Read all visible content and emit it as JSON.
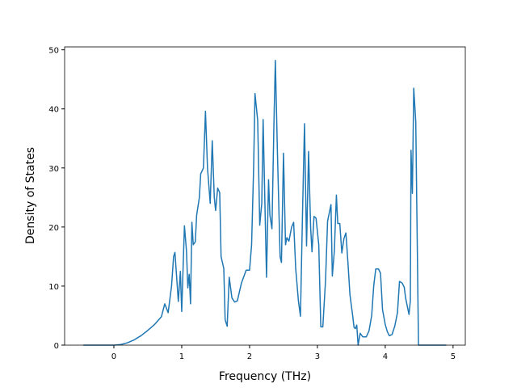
{
  "chart_data": {
    "type": "line",
    "xlabel": "Frequency (THz)",
    "ylabel": "Density of States",
    "x": [
      -0.45,
      0,
      0.1,
      0.2,
      0.3,
      0.4,
      0.5,
      0.6,
      0.7,
      0.75,
      0.8,
      0.85,
      0.88,
      0.9,
      0.95,
      0.98,
      1.0,
      1.04,
      1.07,
      1.09,
      1.11,
      1.13,
      1.15,
      1.17,
      1.2,
      1.22,
      1.26,
      1.28,
      1.32,
      1.35,
      1.38,
      1.42,
      1.45,
      1.48,
      1.5,
      1.53,
      1.56,
      1.58,
      1.62,
      1.64,
      1.67,
      1.7,
      1.74,
      1.78,
      1.82,
      1.88,
      1.95,
      2.0,
      2.03,
      2.06,
      2.08,
      2.12,
      2.15,
      2.18,
      2.2,
      2.23,
      2.25,
      2.28,
      2.3,
      2.33,
      2.36,
      2.38,
      2.41,
      2.45,
      2.47,
      2.5,
      2.53,
      2.55,
      2.58,
      2.62,
      2.65,
      2.68,
      2.72,
      2.75,
      2.78,
      2.81,
      2.84,
      2.87,
      2.9,
      2.92,
      2.95,
      2.98,
      3.02,
      3.05,
      3.08,
      3.12,
      3.15,
      3.2,
      3.22,
      3.25,
      3.28,
      3.3,
      3.33,
      3.36,
      3.39,
      3.42,
      3.45,
      3.48,
      3.52,
      3.54,
      3.56,
      3.58,
      3.6,
      3.63,
      3.67,
      3.72,
      3.76,
      3.8,
      3.83,
      3.86,
      3.9,
      3.93,
      3.96,
      4.0,
      4.03,
      4.06,
      4.1,
      4.14,
      4.18,
      4.21,
      4.25,
      4.28,
      4.3,
      4.35,
      4.37,
      4.38,
      4.4,
      4.42,
      4.45,
      4.49,
      4.9
    ],
    "series": [
      {
        "name": "DOS",
        "color": "#1f77b4",
        "values": [
          0,
          0,
          0.1,
          0.4,
          0.9,
          1.6,
          2.5,
          3.5,
          4.8,
          7,
          5.5,
          10,
          15,
          15.7,
          7.4,
          12.5,
          5.7,
          20.2,
          16,
          9.7,
          12,
          7,
          20.8,
          17,
          17.5,
          22,
          25,
          29,
          30,
          39.6,
          30,
          24,
          34.6,
          25,
          22.8,
          26.6,
          25.8,
          15,
          13,
          4.3,
          3.2,
          11.5,
          8,
          7.3,
          7.5,
          10.5,
          12.7,
          12.7,
          17,
          30,
          42.6,
          38,
          20.3,
          24,
          38.2,
          22,
          11.5,
          28,
          22,
          19.7,
          38,
          48.2,
          33,
          15,
          14,
          32.5,
          17,
          18.2,
          17.6,
          20,
          20.8,
          13,
          7.5,
          4.9,
          22,
          37.5,
          16.8,
          32.8,
          20,
          15.8,
          21.8,
          21.5,
          17,
          3.1,
          3.1,
          11,
          21,
          23.8,
          11.7,
          16,
          25.4,
          20.6,
          20.6,
          15.6,
          18,
          19,
          14,
          8.5,
          5,
          3,
          2.8,
          3.4,
          0,
          2,
          1.4,
          1.4,
          2.4,
          5,
          10,
          12.9,
          12.9,
          12.2,
          6,
          3.5,
          2.3,
          1.6,
          1.8,
          3.2,
          5.5,
          10.8,
          10.5,
          9.8,
          8,
          5.2,
          7.5,
          33,
          25.7,
          43.5,
          37.8,
          0,
          0
        ]
      }
    ],
    "xlim": [
      -0.726,
      5.18
    ],
    "ylim": [
      0,
      50.5
    ],
    "xticks": [
      0,
      1,
      2,
      3,
      4,
      5
    ],
    "yticks": [
      0,
      10,
      20,
      30,
      40,
      50
    ]
  }
}
